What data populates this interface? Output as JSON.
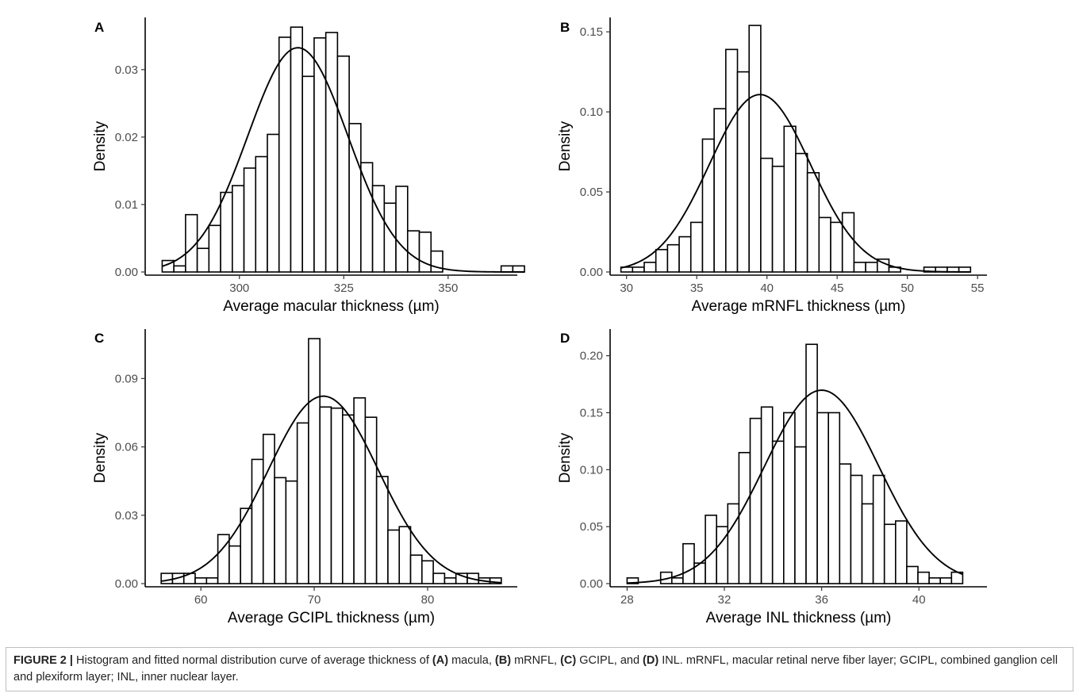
{
  "chart_data": [
    {
      "type": "bar",
      "panel": "A",
      "xlabel": "Average macular thickness (µm)",
      "ylabel": "Density",
      "xlim": [
        278,
        366
      ],
      "ylim": [
        0,
        0.0375
      ],
      "xticks": [
        300,
        325,
        350
      ],
      "yticks": [
        0.0,
        0.01,
        0.02,
        0.03
      ],
      "ytick_labels": [
        "0.00",
        "0.01",
        "0.02",
        "0.03"
      ],
      "bin_start": 281.5,
      "bin_width": 2.8,
      "values": [
        0.0017,
        0.0009,
        0.0085,
        0.0035,
        0.0069,
        0.0118,
        0.0128,
        0.0154,
        0.0171,
        0.0204,
        0.0348,
        0.0363,
        0.029,
        0.0347,
        0.0355,
        0.032,
        0.022,
        0.0162,
        0.0128,
        0.0102,
        0.0127,
        0.0061,
        0.0059,
        0.0031,
        0,
        0,
        0,
        0,
        0,
        0.0009,
        0.0009
      ],
      "curve": {
        "mean": 314,
        "sd": 12
      }
    },
    {
      "type": "bar",
      "panel": "B",
      "xlabel": "Average mRNFL thickness (µm)",
      "ylabel": "Density",
      "xlim": [
        29,
        55.5
      ],
      "ylim": [
        0,
        0.158
      ],
      "xticks": [
        30,
        35,
        40,
        45,
        50,
        55
      ],
      "yticks": [
        0.0,
        0.05,
        0.1,
        0.15
      ],
      "ytick_labels": [
        "0.00",
        "0.05",
        "0.10",
        "0.15"
      ],
      "bin_start": 29.6,
      "bin_width": 0.83,
      "values": [
        0.003,
        0.003,
        0.006,
        0.014,
        0.017,
        0.022,
        0.031,
        0.083,
        0.102,
        0.139,
        0.125,
        0.154,
        0.071,
        0.066,
        0.091,
        0.074,
        0.062,
        0.034,
        0.031,
        0.037,
        0.006,
        0.006,
        0.008,
        0.003,
        0,
        0,
        0.003,
        0.003,
        0.003,
        0.003
      ],
      "curve": {
        "mean": 39.5,
        "sd": 3.6
      }
    },
    {
      "type": "bar",
      "panel": "C",
      "xlabel": "Average GCIPL thickness (µm)",
      "ylabel": "Density",
      "xlim": [
        55.3,
        87.7
      ],
      "ylim": [
        0,
        0.111
      ],
      "xticks": [
        60,
        70,
        80
      ],
      "yticks": [
        0.0,
        0.03,
        0.06,
        0.09
      ],
      "ytick_labels": [
        "0.00",
        "0.03",
        "0.06",
        "0.09"
      ],
      "bin_start": 56.5,
      "bin_width": 1.0,
      "values": [
        0.0045,
        0.0045,
        0.0045,
        0.0025,
        0.0025,
        0.0215,
        0.0165,
        0.033,
        0.0545,
        0.0655,
        0.0465,
        0.045,
        0.0705,
        0.1075,
        0.0775,
        0.077,
        0.074,
        0.0815,
        0.073,
        0.047,
        0.0235,
        0.025,
        0.0125,
        0.01,
        0.0045,
        0.0025,
        0.0045,
        0.0045,
        0.0025,
        0.0025
      ],
      "curve": {
        "mean": 70.8,
        "sd": 4.85
      }
    },
    {
      "type": "bar",
      "panel": "D",
      "xlabel": "Average INL thickness (µm)",
      "ylabel": "Density",
      "xlim": [
        27.4,
        42.7
      ],
      "ylim": [
        0,
        0.222
      ],
      "xticks": [
        28,
        32,
        36,
        40
      ],
      "yticks": [
        0.0,
        0.05,
        0.1,
        0.15,
        0.2
      ],
      "ytick_labels": [
        "0.00",
        "0.05",
        "0.10",
        "0.15",
        "0.20"
      ],
      "bin_start": 28.0,
      "bin_width": 0.46,
      "values": [
        0.005,
        0,
        0,
        0.01,
        0.005,
        0.035,
        0.018,
        0.06,
        0.05,
        0.07,
        0.115,
        0.145,
        0.155,
        0.125,
        0.15,
        0.12,
        0.21,
        0.15,
        0.15,
        0.105,
        0.095,
        0.07,
        0.095,
        0.052,
        0.055,
        0.015,
        0.01,
        0.005,
        0.005,
        0.01
      ],
      "curve": {
        "mean": 36,
        "sd": 2.35
      }
    }
  ],
  "caption": {
    "label": "FIGURE 2 |",
    "text_1": " Histogram and fitted normal distribution curve of average thickness of ",
    "ref_a": "(A)",
    "text_2": " macula, ",
    "ref_b": "(B)",
    "text_3": " mRNFL, ",
    "ref_c": "(C)",
    "text_4": " GCIPL, and ",
    "ref_d": "(D)",
    "text_5": " INL. mRNFL, macular retinal nerve fiber layer; GCIPL, combined ganglion cell and plexiform layer; INL, inner nuclear layer."
  }
}
